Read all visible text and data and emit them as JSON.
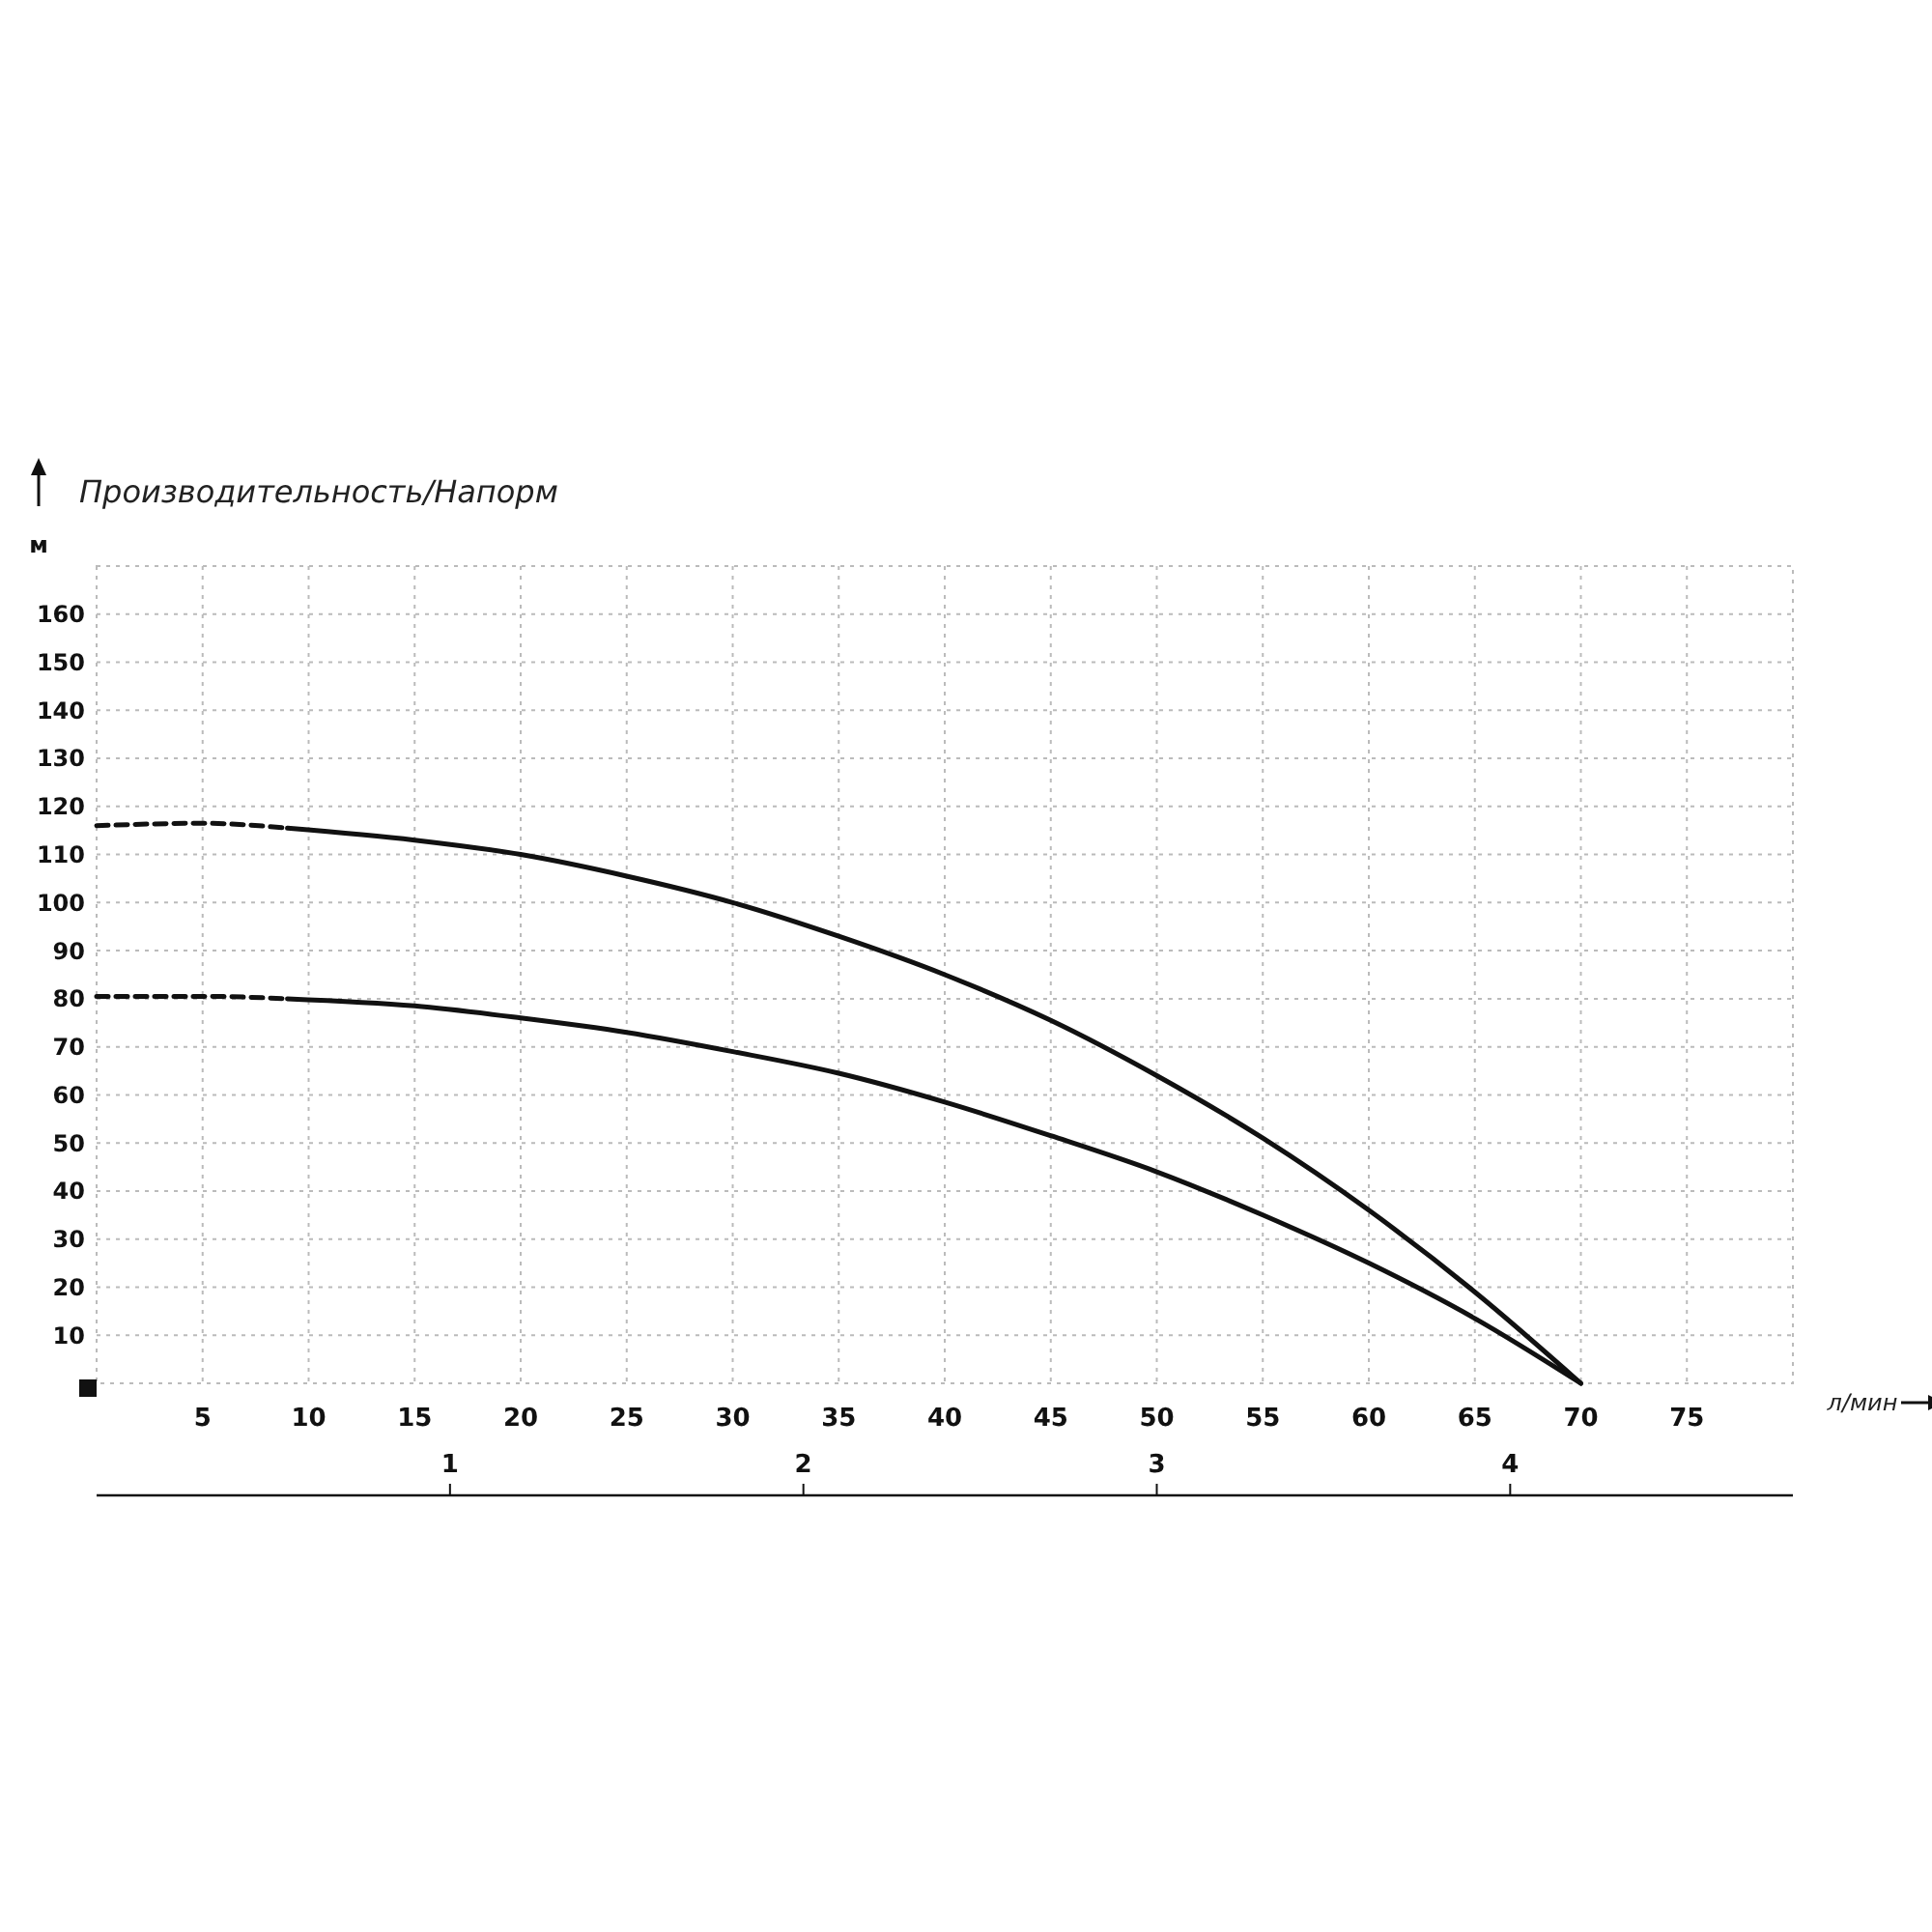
{
  "chart_data": {
    "type": "line",
    "title": "Производительность/Напорм",
    "ylabel": "м",
    "xlabel": "л/мин",
    "xlim": [
      0,
      80
    ],
    "xticks": [
      5,
      10,
      15,
      20,
      25,
      30,
      35,
      40,
      45,
      50,
      55,
      60,
      65,
      70,
      75
    ],
    "ylim": [
      0,
      170
    ],
    "yticks": [
      10,
      20,
      30,
      40,
      50,
      60,
      70,
      80,
      90,
      100,
      110,
      120,
      130,
      140,
      150,
      160
    ],
    "x2lim": [
      0,
      4.8
    ],
    "x2ticks": [
      1,
      2,
      3,
      4
    ],
    "grid": true,
    "marker": "none",
    "series": [
      {
        "color": "#111111",
        "line_style": "dashed",
        "x": [
          0,
          5,
          9
        ],
        "values": [
          116,
          116.5,
          115.5
        ]
      },
      {
        "color": "#111111",
        "line_style": "solid",
        "x": [
          9,
          15,
          20,
          25,
          30,
          35,
          40,
          45,
          50,
          55,
          60,
          65,
          70
        ],
        "values": [
          115.5,
          113,
          110,
          105.5,
          100,
          93,
          85,
          75.5,
          64,
          51,
          36,
          19,
          0
        ]
      },
      {
        "color": "#111111",
        "line_style": "dashed",
        "x": [
          0,
          5,
          9
        ],
        "values": [
          80.5,
          80.5,
          80
        ]
      },
      {
        "color": "#111111",
        "line_style": "solid",
        "x": [
          9,
          15,
          20,
          25,
          30,
          35,
          40,
          45,
          50,
          55,
          60,
          65,
          70
        ],
        "values": [
          80,
          78.5,
          76,
          73,
          69,
          64.5,
          58.5,
          51.5,
          44,
          35,
          25,
          13.5,
          0
        ]
      }
    ]
  }
}
